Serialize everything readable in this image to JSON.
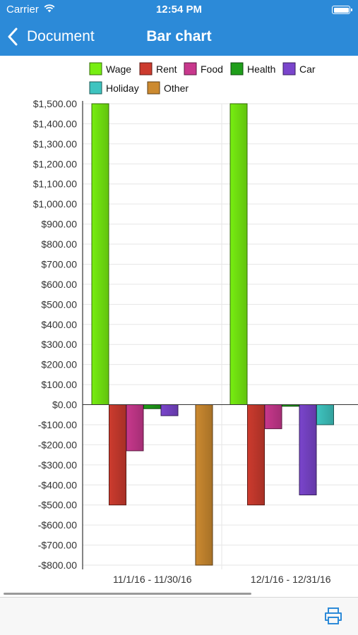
{
  "status_bar": {
    "carrier": "Carrier",
    "time": "12:54 PM"
  },
  "nav": {
    "back_label": "Document",
    "title": "Bar chart"
  },
  "colors": {
    "nav_bar": "#2c8ad8",
    "Wage": "#77ee11",
    "Rent": "#cc3b2e",
    "Food": "#c8388d",
    "Health": "#1f9e1a",
    "Car": "#7a45cc",
    "Holiday": "#3ec4c0",
    "Other": "#cc8a30"
  },
  "toolbar": {
    "print_icon": "print-icon"
  },
  "chart_data": {
    "type": "bar",
    "categories": [
      "11/1/16 - 11/30/16",
      "12/1/16 - 12/31/16"
    ],
    "series": [
      {
        "name": "Wage",
        "values": [
          1500,
          1500
        ]
      },
      {
        "name": "Rent",
        "values": [
          -500,
          -500
        ]
      },
      {
        "name": "Food",
        "values": [
          -230,
          -120
        ]
      },
      {
        "name": "Health",
        "values": [
          -20,
          -8
        ]
      },
      {
        "name": "Car",
        "values": [
          -55,
          -450
        ]
      },
      {
        "name": "Holiday",
        "values": [
          0,
          -100
        ]
      },
      {
        "name": "Other",
        "values": [
          -800,
          0
        ]
      }
    ],
    "legend_rows": [
      [
        "Wage",
        "Rent",
        "Food",
        "Health",
        "Car"
      ],
      [
        "Holiday",
        "Other"
      ]
    ],
    "yticks": [
      1500,
      1400,
      1300,
      1200,
      1100,
      1000,
      900,
      800,
      700,
      600,
      500,
      400,
      300,
      200,
      100,
      0,
      -100,
      -200,
      -300,
      -400,
      -500,
      -600,
      -700,
      -800
    ],
    "ytick_labels": [
      "$1,500.00",
      "$1,400.00",
      "$1,300.00",
      "$1,200.00",
      "$1,100.00",
      "$1,000.00",
      "$900.00",
      "$800.00",
      "$700.00",
      "$600.00",
      "$500.00",
      "$400.00",
      "$300.00",
      "$200.00",
      "$100.00",
      "$0.00",
      "-$100.00",
      "-$200.00",
      "-$300.00",
      "-$400.00",
      "-$500.00",
      "-$600.00",
      "-$700.00",
      "-$800.00"
    ],
    "ylim": [
      -800,
      1500
    ],
    "legend_position": "top",
    "grid": true
  }
}
